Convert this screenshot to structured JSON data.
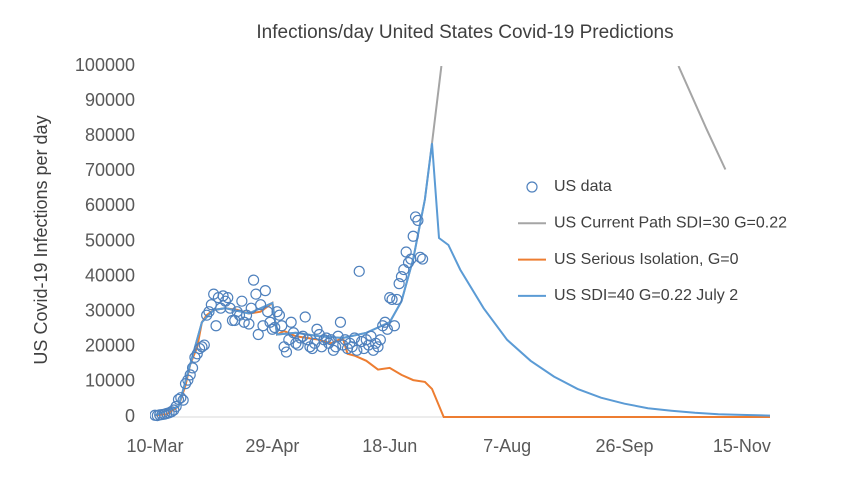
{
  "chart_data": {
    "type": "scatter-line",
    "title": "Infections/day United States Covid-19 Predictions",
    "y_label": "US Covid-19 Infections per day",
    "xlim": [
      0,
      262
    ],
    "xticks": [
      {
        "value": 0,
        "label": "10-Mar"
      },
      {
        "value": 50,
        "label": "29-Apr"
      },
      {
        "value": 100,
        "label": "18-Jun"
      },
      {
        "value": 150,
        "label": "7-Aug"
      },
      {
        "value": 200,
        "label": "26-Sep"
      },
      {
        "value": 250,
        "label": "15-Nov"
      }
    ],
    "ylim": [
      0,
      100000
    ],
    "yticks": [
      0,
      10000,
      20000,
      30000,
      40000,
      50000,
      60000,
      70000,
      80000,
      90000,
      100000
    ],
    "grid": false,
    "legend": "right",
    "series": [
      {
        "name": "US data",
        "kind": "markers",
        "color": "#4f81bd",
        "x": [
          0,
          1,
          2,
          3,
          4,
          5,
          6,
          7,
          8,
          9,
          10,
          11,
          12,
          13,
          14,
          15,
          16,
          17,
          18,
          19,
          20,
          21,
          22,
          23,
          24,
          25,
          26,
          27,
          28,
          29,
          30,
          31,
          32,
          33,
          34,
          35,
          36,
          37,
          38,
          39,
          40,
          41,
          42,
          43,
          44,
          45,
          46,
          47,
          48,
          49,
          50,
          51,
          52,
          53,
          54,
          55,
          56,
          57,
          58,
          59,
          60,
          61,
          62,
          63,
          64,
          65,
          66,
          67,
          68,
          69,
          70,
          71,
          72,
          73,
          74,
          75,
          76,
          77,
          78,
          79,
          80,
          81,
          82,
          83,
          84,
          85,
          86,
          87,
          88,
          89,
          90,
          91,
          92,
          93,
          94,
          95,
          96,
          97,
          98,
          99,
          100,
          101,
          102,
          103,
          104,
          105,
          106,
          107,
          108,
          109,
          110,
          111,
          112,
          113,
          114
        ],
        "values": [
          500,
          400,
          600,
          700,
          800,
          1000,
          1200,
          1500,
          2000,
          3000,
          5000,
          5500,
          4800,
          9500,
          10500,
          12000,
          14000,
          17000,
          18000,
          19500,
          20000,
          20500,
          29000,
          30000,
          32000,
          35000,
          26000,
          34000,
          31000,
          34500,
          33000,
          34000,
          31000,
          27500,
          27500,
          30000,
          29000,
          33000,
          27000,
          29000,
          26500,
          31000,
          39000,
          35000,
          23500,
          32000,
          26000,
          36000,
          30000,
          27000,
          25000,
          25500,
          30000,
          29000,
          26000,
          20000,
          18500,
          22000,
          27000,
          24000,
          21000,
          20500,
          22500,
          23000,
          28500,
          22000,
          20000,
          19500,
          21000,
          25000,
          23500,
          20000,
          22000,
          22500,
          21000,
          22000,
          19000,
          20000,
          23000,
          27000,
          20500,
          22000,
          19500,
          21000,
          20000,
          22500,
          19000,
          41500,
          21500,
          19500,
          22000,
          20500,
          23000,
          19000,
          21000,
          20000,
          22000,
          26000,
          27000,
          25000,
          34000,
          33500,
          26000,
          33500,
          38000,
          40000,
          42000,
          47000,
          44000,
          45000,
          51500,
          57000,
          56000,
          45500,
          45000
        ]
      },
      {
        "name": "US Current Path SDI=30 G=0.22",
        "kind": "line",
        "color": "#a5a5a5",
        "x": [
          0,
          10,
          15,
          20,
          25,
          30,
          40,
          50,
          52,
          60,
          70,
          80,
          90,
          100,
          105,
          110,
          115,
          118,
          122,
          170,
          223,
          235,
          243
        ],
        "values": [
          500,
          3000,
          15000,
          27000,
          30500,
          31000,
          29500,
          32500,
          23500,
          24000,
          23000,
          22500,
          24000,
          27000,
          33000,
          45000,
          62000,
          78000,
          100000,
          null,
          100000,
          82000,
          70500
        ]
      },
      {
        "name": "US Serious Isolation, G=0",
        "kind": "line",
        "color": "#ed7d31",
        "x": [
          0,
          5,
          10,
          13,
          15,
          18,
          20,
          22,
          25,
          30,
          35,
          40,
          45,
          50,
          52,
          55,
          60,
          65,
          70,
          75,
          80,
          82,
          85,
          90,
          95,
          100,
          105,
          110,
          115,
          118,
          123,
          262
        ],
        "values": [
          500,
          800,
          3000,
          9000,
          15000,
          20000,
          27000,
          29000,
          30500,
          31000,
          30500,
          29500,
          30000,
          32500,
          23500,
          24500,
          23000,
          22500,
          22000,
          21000,
          22500,
          18000,
          17500,
          16000,
          13500,
          14000,
          12000,
          10500,
          10000,
          8000,
          0,
          0
        ]
      },
      {
        "name": "US SDI=40 G=0.22 July 2",
        "kind": "line",
        "color": "#5b9bd5",
        "x": [
          0,
          10,
          15,
          20,
          25,
          30,
          40,
          50,
          52,
          60,
          70,
          80,
          90,
          100,
          105,
          110,
          115,
          118,
          121,
          125,
          130,
          140,
          150,
          160,
          170,
          180,
          190,
          200,
          210,
          220,
          230,
          240,
          250,
          262
        ],
        "values": [
          500,
          3000,
          15000,
          27000,
          30500,
          31000,
          29500,
          32500,
          23500,
          24000,
          23000,
          22500,
          24000,
          27000,
          33000,
          45000,
          62000,
          78000,
          51000,
          49000,
          42000,
          31000,
          22000,
          16000,
          11500,
          8000,
          5500,
          3800,
          2500,
          1800,
          1200,
          800,
          600,
          400
        ]
      }
    ]
  }
}
